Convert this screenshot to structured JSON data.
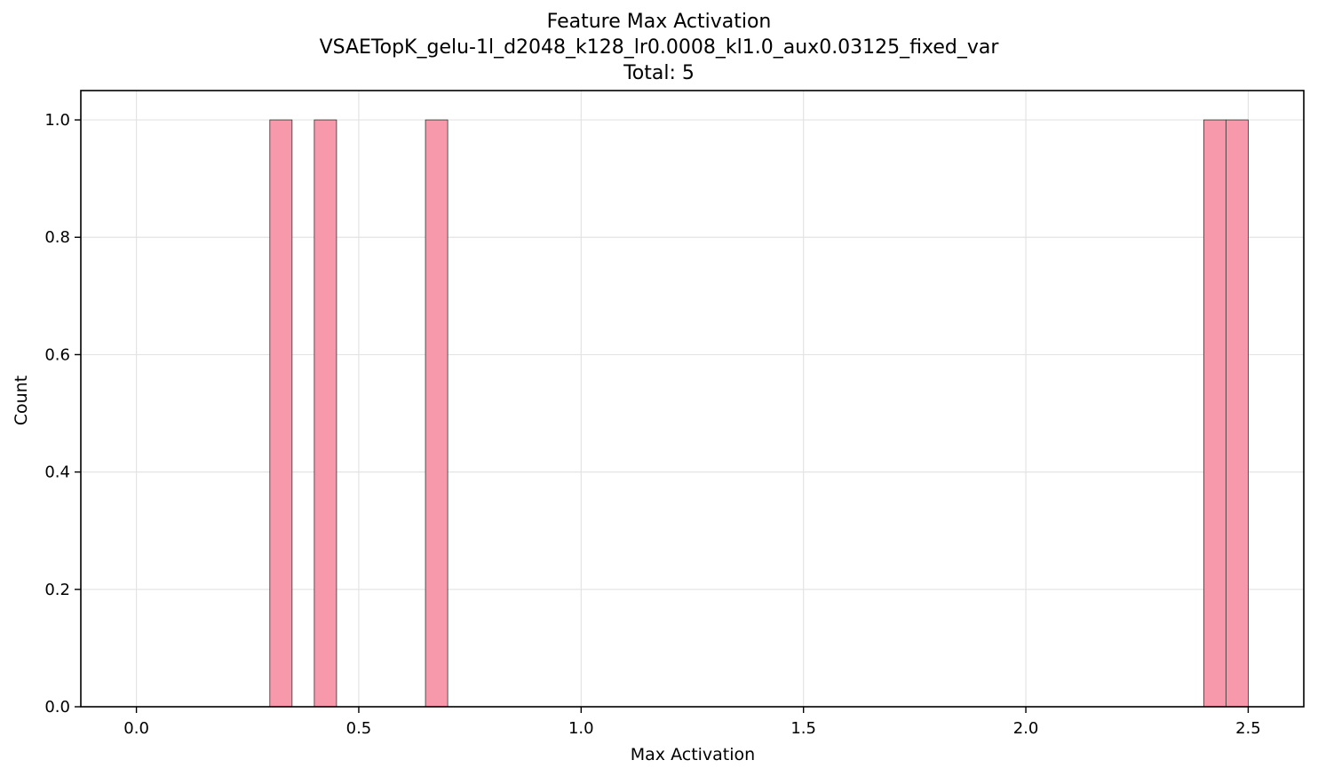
{
  "chart_data": {
    "type": "bar",
    "title": "Feature Max Activation",
    "subtitle": "VSAETopK_gelu-1l_d2048_k128_lr0.0008_kl1.0_aux0.03125_fixed_var",
    "caption": "Total: 5",
    "xlabel": "Max Activation",
    "ylabel": "Count",
    "xlim": [
      -0.125,
      2.625
    ],
    "ylim": [
      0,
      1.05
    ],
    "xticks": [
      0.0,
      0.5,
      1.0,
      1.5,
      2.0,
      2.5
    ],
    "xtick_labels": [
      "0.0",
      "0.5",
      "1.0",
      "1.5",
      "2.0",
      "2.5"
    ],
    "yticks": [
      0.0,
      0.2,
      0.4,
      0.6,
      0.8,
      1.0
    ],
    "ytick_labels": [
      "0.0",
      "0.2",
      "0.4",
      "0.6",
      "0.8",
      "1.0"
    ],
    "grid": true,
    "bar_color": "#f799ab",
    "edge_color": "#333333",
    "bins": [
      {
        "start": 0.3,
        "end": 0.35,
        "count": 1
      },
      {
        "start": 0.4,
        "end": 0.45,
        "count": 1
      },
      {
        "start": 0.65,
        "end": 0.7,
        "count": 1
      },
      {
        "start": 2.4,
        "end": 2.45,
        "count": 1
      },
      {
        "start": 2.45,
        "end": 2.5,
        "count": 1
      }
    ]
  }
}
